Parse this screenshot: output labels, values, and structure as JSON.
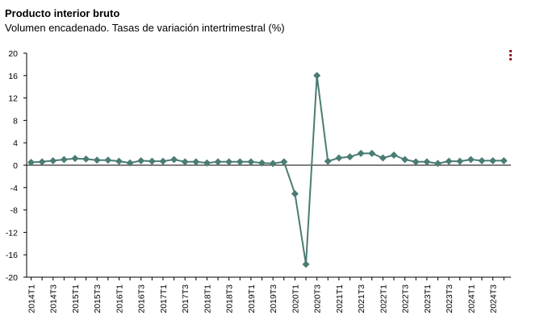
{
  "header": {
    "title": "Producto interior bruto",
    "subtitle": "Volumen encadenado. Tasas de variación intertrimestral (%)"
  },
  "menu_icon": "vertical-dots-icon",
  "colors": {
    "series": "#4a7c74",
    "menu": "#9b1c2a",
    "axis": "#000000"
  },
  "chart_data": {
    "type": "line",
    "title": "Producto interior bruto",
    "subtitle": "Volumen encadenado. Tasas de variación intertrimestral (%)",
    "ylim": [
      -20,
      20
    ],
    "yticks": [
      20,
      16,
      12,
      8,
      4,
      0,
      -4,
      -8,
      -12,
      -16,
      -20
    ],
    "grid": false,
    "x": [
      "2014T1",
      "2014T2",
      "2014T3",
      "2014T4",
      "2015T1",
      "2015T2",
      "2015T3",
      "2015T4",
      "2016T1",
      "2016T2",
      "2016T3",
      "2016T4",
      "2017T1",
      "2017T2",
      "2017T3",
      "2017T4",
      "2018T1",
      "2018T2",
      "2018T3",
      "2018T4",
      "2019T1",
      "2019T2",
      "2019T3",
      "2019T4",
      "2020T1",
      "2020T2",
      "2020T3",
      "2020T4",
      "2021T1",
      "2021T2",
      "2021T3",
      "2021T4",
      "2022T1",
      "2022T2",
      "2022T3",
      "2022T4",
      "2023T1",
      "2023T2",
      "2023T3",
      "2023T4",
      "2024T1",
      "2024T2",
      "2024T3",
      "2024T4"
    ],
    "xtick_labels": [
      "2014T1",
      "2014T3",
      "2015T1",
      "2015T3",
      "2016T1",
      "2016T3",
      "2017T1",
      "2017T3",
      "2018T1",
      "2018T3",
      "2019T1",
      "2019T3",
      "2020T1",
      "2020T3",
      "2021T1",
      "2021T3",
      "2022T1",
      "2022T3",
      "2023T1",
      "2023T3",
      "2024T1",
      "2024T3"
    ],
    "series": [
      {
        "values": [
          0.5,
          0.6,
          0.8,
          1.0,
          1.2,
          1.1,
          0.9,
          0.9,
          0.7,
          0.4,
          0.8,
          0.7,
          0.7,
          1.0,
          0.6,
          0.6,
          0.4,
          0.6,
          0.6,
          0.6,
          0.6,
          0.4,
          0.3,
          0.6,
          -5.1,
          -17.7,
          16.0,
          0.7,
          1.3,
          1.5,
          2.1,
          2.1,
          1.3,
          1.8,
          1.0,
          0.6,
          0.6,
          0.3,
          0.7,
          0.7,
          1.0,
          0.8,
          0.8,
          0.8
        ]
      }
    ]
  }
}
